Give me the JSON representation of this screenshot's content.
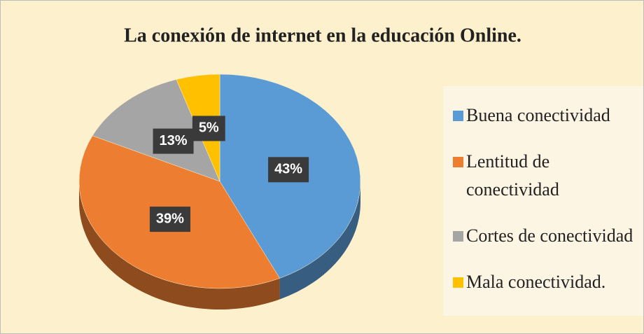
{
  "chart_data": {
    "type": "pie",
    "title": "La conexión de internet en la educación Online.",
    "categories": [
      "Buena conectividad",
      "Lentitud de conectividad",
      "Cortes de conectividad",
      "Mala conectividad."
    ],
    "values": [
      43,
      39,
      13,
      5
    ],
    "value_labels": [
      "43%",
      "39%",
      "13%",
      "5%"
    ],
    "colors": [
      "#5b9bd5",
      "#ed7d31",
      "#a5a5a5",
      "#ffc000"
    ],
    "legend": "right"
  }
}
